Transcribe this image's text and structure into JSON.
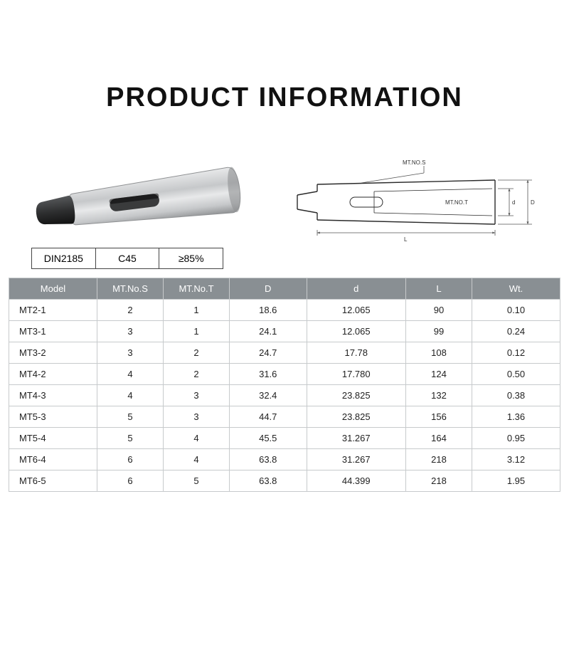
{
  "title": "PRODUCT INFORMATION",
  "spec_boxes": {
    "a": "DIN2185",
    "b": "C45",
    "c": "≥85%"
  },
  "diagram_labels": {
    "top": "MT.NO.S",
    "inner": "MT.NO.T",
    "L": "L",
    "d": "d",
    "D": "D"
  },
  "photo": {
    "body_fill": "#c6c8ca",
    "body_highlight": "#e8e9ea",
    "body_shadow": "#8f9193",
    "cap_fill": "#2e2f30",
    "cap_highlight": "#56585a",
    "slot_fill": "#3a3b3c"
  },
  "diagram": {
    "stroke": "#2a2a2a",
    "thin_stroke": "#555555"
  },
  "table": {
    "header_bg": "#898f93",
    "header_fg": "#ffffff",
    "border": "#c7cacc",
    "columns": [
      "Model",
      "MT.No.S",
      "MT.No.T",
      "D",
      "d",
      "L",
      "Wt."
    ],
    "col_widths": [
      "16%",
      "12%",
      "12%",
      "14%",
      "18%",
      "12%",
      "16%"
    ],
    "rows": [
      [
        "MT2-1",
        "2",
        "1",
        "18.6",
        "12.065",
        "90",
        "0.10"
      ],
      [
        "MT3-1",
        "3",
        "1",
        "24.1",
        "12.065",
        "99",
        "0.24"
      ],
      [
        "MT3-2",
        "3",
        "2",
        "24.7",
        "17.78",
        "108",
        "0.12"
      ],
      [
        "MT4-2",
        "4",
        "2",
        "31.6",
        "17.780",
        "124",
        "0.50"
      ],
      [
        "MT4-3",
        "4",
        "3",
        "32.4",
        "23.825",
        "132",
        "0.38"
      ],
      [
        "MT5-3",
        "5",
        "3",
        "44.7",
        "23.825",
        "156",
        "1.36"
      ],
      [
        "MT5-4",
        "5",
        "4",
        "45.5",
        "31.267",
        "164",
        "0.95"
      ],
      [
        "MT6-4",
        "6",
        "4",
        "63.8",
        "31.267",
        "218",
        "3.12"
      ],
      [
        "MT6-5",
        "6",
        "5",
        "63.8",
        "44.399",
        "218",
        "1.95"
      ]
    ]
  }
}
